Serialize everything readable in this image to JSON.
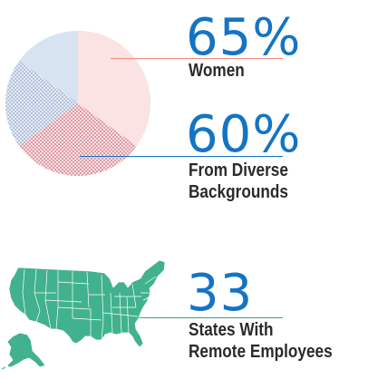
{
  "chart_data": {
    "type": "pie",
    "title": "",
    "slices": [
      {
        "label": "Women",
        "value": 65,
        "color": "#f9c9cc"
      },
      {
        "label": "From Diverse Backgrounds",
        "value": 60,
        "color": "#d4405a"
      }
    ],
    "base_color": "#d6e2f2"
  },
  "stats": [
    {
      "number": "65%",
      "label": "Women"
    },
    {
      "number": "60%",
      "label_lines": [
        "From Diverse",
        "Backgrounds"
      ]
    },
    {
      "number": "33",
      "label_lines": [
        "States With",
        "Remote Employees"
      ]
    }
  ],
  "colors": {
    "accent": "#1474c4",
    "leader_women": "#f08b82",
    "leader_diverse": "#1474c4",
    "leader_states": "#3aa383",
    "map_fill": "#41b28d"
  },
  "icons": {
    "map": "united-states-map-icon"
  }
}
